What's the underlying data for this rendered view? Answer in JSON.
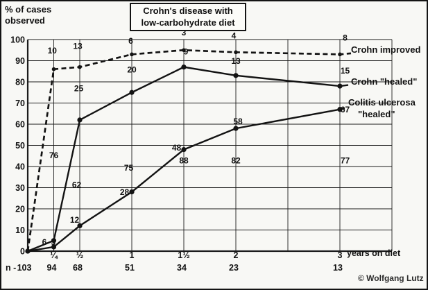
{
  "figure": {
    "title_line1": "Crohn's disease with",
    "title_line2": "low-carbohydrate diet",
    "y_axis_label_line1": "% of cases",
    "y_axis_label_line2": "observed",
    "x_axis_suffix": "years on diet",
    "n_row_label": "n -",
    "copyright": "© Wolfgang Lutz"
  },
  "chart_data": {
    "type": "line",
    "title": "Crohn's disease with low-carbohydrate diet",
    "ylabel": "% of cases observed",
    "xlabel": "years on diet",
    "ylim": [
      0,
      100
    ],
    "xlim_years": [
      0,
      3.5
    ],
    "grid": true,
    "y_ticks": [
      0,
      10,
      20,
      30,
      40,
      50,
      60,
      70,
      80,
      90,
      100
    ],
    "x_ticks": [
      {
        "t": 0.25,
        "label": "¼"
      },
      {
        "t": 0.5,
        "label": "½"
      },
      {
        "t": 1,
        "label": "1"
      },
      {
        "t": 1.5,
        "label": "1½"
      },
      {
        "t": 2,
        "label": "2"
      },
      {
        "t": 3,
        "label": "3"
      }
    ],
    "grid_vertical_t": [
      0,
      0.25,
      0.5,
      1,
      1.5,
      2,
      2.5,
      3,
      3.5
    ],
    "series": [
      {
        "name": "Crohn improved",
        "style": "dashed",
        "x_years": [
          0,
          0.25,
          0.5,
          1,
          1.5,
          2,
          3
        ],
        "values": [
          0,
          86,
          87,
          93,
          95,
          94,
          93
        ],
        "label_lines": [
          "Crohn improved"
        ]
      },
      {
        "name": "Crohn \"healed\"",
        "style": "solid",
        "x_years": [
          0,
          0.25,
          0.5,
          1,
          1.5,
          2,
          3
        ],
        "values": [
          0,
          5,
          62,
          75,
          87,
          83,
          78
        ],
        "label_lines": [
          "Crohn \"healed\""
        ]
      },
      {
        "name": "Colitis ulcerosa \"healed\"",
        "style": "solid",
        "x_years": [
          0,
          0.25,
          0.5,
          1,
          1.5,
          2,
          3
        ],
        "values": [
          0,
          2,
          12,
          28,
          48,
          58,
          67
        ],
        "label_lines": [
          "Colitis ulcerosa",
          "\"healed\""
        ]
      }
    ],
    "n_values": [
      {
        "t": 0,
        "n": "103"
      },
      {
        "t": 0.25,
        "n": "94"
      },
      {
        "t": 0.5,
        "n": "68"
      },
      {
        "t": 1,
        "n": "51"
      },
      {
        "t": 1.5,
        "n": "34"
      },
      {
        "t": 2,
        "n": "23"
      },
      {
        "t": 3,
        "n": "13"
      }
    ],
    "point_annotations": [
      {
        "t": 0.235,
        "v": 93.5,
        "text": "10"
      },
      {
        "t": 0.48,
        "v": 95.5,
        "text": "13"
      },
      {
        "t": 0.99,
        "v": 98,
        "text": "6"
      },
      {
        "t": 1.5,
        "v": 102,
        "text": "3"
      },
      {
        "t": 1.98,
        "v": 100.5,
        "text": "4"
      },
      {
        "t": 3.05,
        "v": 99.5,
        "text": "8"
      },
      {
        "t": 0.49,
        "v": 75.5,
        "text": "25"
      },
      {
        "t": 1.0,
        "v": 84.5,
        "text": "20"
      },
      {
        "t": 1.52,
        "v": 93,
        "text": "9"
      },
      {
        "t": 2.0,
        "v": 88.5,
        "text": "13"
      },
      {
        "t": 3.05,
        "v": 84,
        "text": "15"
      },
      {
        "t": 0.25,
        "v": 44,
        "text": "76"
      },
      {
        "t": 0.47,
        "v": 30,
        "text": "62"
      },
      {
        "t": 0.97,
        "v": 38,
        "text": "75"
      },
      {
        "t": 1.5,
        "v": 41.5,
        "text": "88"
      },
      {
        "t": 2.0,
        "v": 41.5,
        "text": "82"
      },
      {
        "t": 3.05,
        "v": 41.5,
        "text": "77"
      },
      {
        "t": 0.45,
        "v": 13.5,
        "text": "12"
      },
      {
        "t": 0.93,
        "v": 26.5,
        "text": "28"
      },
      {
        "t": 1.43,
        "v": 47.5,
        "text": "48"
      },
      {
        "t": 2.02,
        "v": 60,
        "text": "58"
      },
      {
        "t": 3.05,
        "v": 65.5,
        "text": "67"
      },
      {
        "t": 0.16,
        "v": 3,
        "text": "6"
      },
      {
        "t": 0.245,
        "v": 3,
        "text": "5"
      }
    ]
  }
}
